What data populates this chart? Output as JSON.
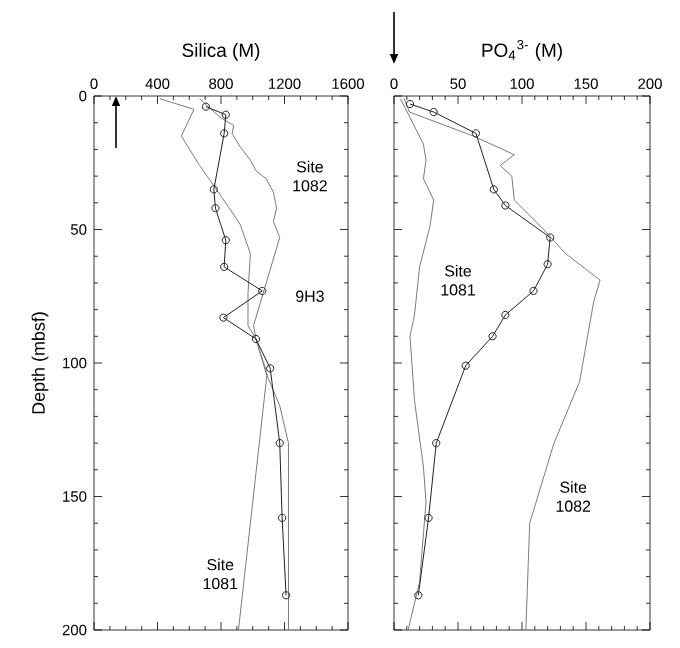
{
  "chart_data": [
    {
      "type": "line",
      "xlabel": "Silica (M)",
      "ylabel": "Depth (mbsf)",
      "xlim": [
        0,
        1600
      ],
      "xticks": [
        0,
        400,
        800,
        1200,
        1600
      ],
      "ylim": [
        200,
        0
      ],
      "yticks": [
        0,
        50,
        100,
        150,
        200
      ],
      "series": [
        {
          "name": "Site 1082",
          "color": "#7a7a7a",
          "x": [
            665,
            795,
            880,
            870,
            920,
            985,
            1020,
            1085,
            1130,
            1150,
            1130,
            1170,
            1070,
            1005,
            1020,
            1085,
            1170,
            1225,
            1225
          ],
          "values": [
            1,
            8,
            11,
            14,
            19,
            24,
            28,
            31,
            36,
            42,
            47,
            53,
            73,
            86,
            91,
            104,
            116,
            130,
            200
          ]
        },
        {
          "name": "Site 1081",
          "color": "#7a7a7a",
          "x": [
            415,
            630,
            550,
            665,
            795,
            920,
            985,
            970,
            970,
            1020,
            1090,
            910
          ],
          "values": [
            1,
            5,
            15,
            26,
            37,
            48,
            59,
            74,
            86,
            91,
            104,
            200
          ]
        },
        {
          "name": "9H3",
          "color": "#222222",
          "marker": "circle",
          "x": [
            705,
            830,
            820,
            755,
            765,
            830,
            820,
            1060,
            815,
            1020,
            1110,
            1170,
            1185,
            1210
          ],
          "values": [
            4,
            7,
            14,
            35,
            42,
            54,
            64,
            73,
            83,
            91,
            102,
            130,
            158,
            187
          ]
        }
      ]
    },
    {
      "type": "line",
      "xlabel": "PO$_{4}$$^{3-}$ (M)",
      "xlim": [
        0,
        200
      ],
      "xticks": [
        0,
        50,
        100,
        150,
        200
      ],
      "ylim": [
        200,
        0
      ],
      "yticks": [
        0,
        50,
        100,
        150,
        200
      ],
      "tick_labels": "x",
      "series": [
        {
          "name": "Site 1081",
          "color": "#7a7a7a",
          "x": [
            5,
            23,
            25,
            23,
            31,
            28,
            20,
            16,
            12.5,
            16,
            23,
            25,
            20,
            11
          ],
          "values": [
            1,
            18,
            24,
            31,
            39,
            49,
            64,
            82,
            90,
            114,
            139,
            152,
            182,
            200
          ]
        },
        {
          "name": "Site 1082",
          "color": "#7a7a7a",
          "x": [
            8,
            12,
            62,
            94,
            83,
            92,
            94,
            117,
            134,
            161,
            156,
            145,
            125,
            106,
            103
          ],
          "values": [
            1,
            6,
            15,
            22,
            26,
            30,
            39,
            50,
            59,
            69,
            77,
            107,
            130,
            160,
            200
          ]
        },
        {
          "color": "#222222",
          "marker": "circle",
          "x": [
            12.5,
            31,
            64,
            78,
            87,
            122,
            120,
            109,
            87,
            77,
            56,
            33,
            27,
            19
          ],
          "values": [
            3,
            6,
            14,
            35,
            41,
            53,
            63,
            73,
            82,
            90,
            101,
            130,
            158,
            187
          ]
        }
      ]
    }
  ]
}
